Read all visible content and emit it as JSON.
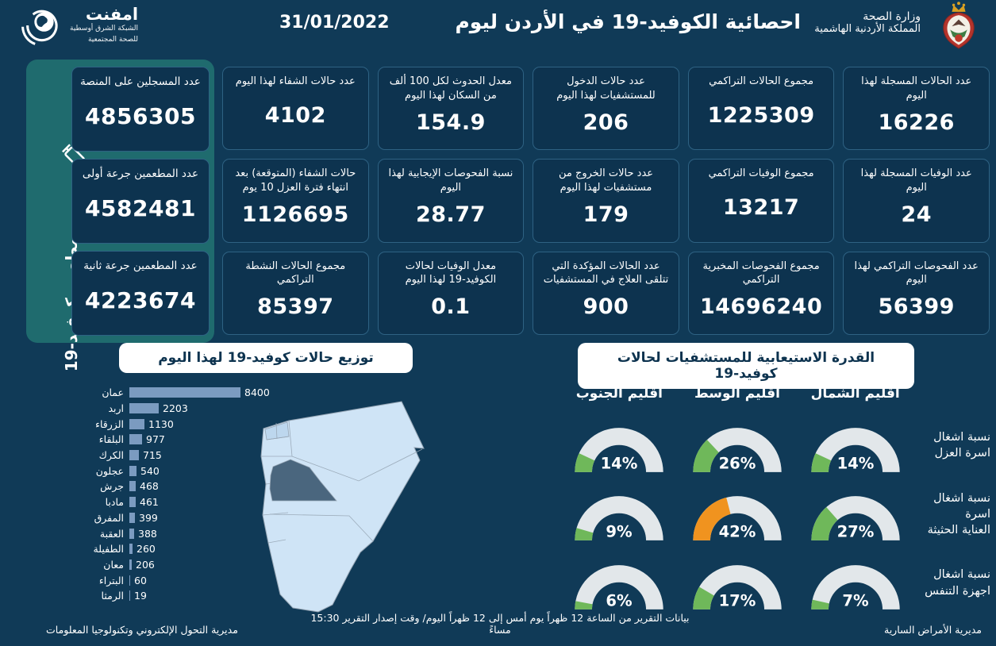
{
  "header": {
    "emphnet": {
      "name": "امفنت",
      "tagline1": "الشبكة الشرق أوسطية",
      "tagline2": "للصحة المجتمعية"
    },
    "title": "احصائية الكوفيد-19 في الأردن ليوم",
    "date": "31/01/2022",
    "ministry": {
      "line1": "وزارة الصحة",
      "line2": "المملكة الأردنية الهاشمية"
    }
  },
  "vaccination": {
    "side_label": "مطعوم كوفيد-19",
    "syringe_icon": "syringe-icon",
    "cards": [
      {
        "label": "عدد المسجلين على المنصة",
        "value": "4856305"
      },
      {
        "label": "عدد المطعمين جرعة أولى",
        "value": "4582481"
      },
      {
        "label": "عدد المطعمين جرعة ثانية",
        "value": "4223674"
      }
    ]
  },
  "stats_cards": [
    {
      "label": "عدد الحالات المسجلة لهذا اليوم",
      "value": "16226"
    },
    {
      "label": "مجموع الحالات التراكمي",
      "value": "1225309"
    },
    {
      "label": "عدد حالات الدخول للمستشفيات لهذا اليوم",
      "value": "206"
    },
    {
      "label": "معدل الحدوث لكل 100 ألف من السكان لهذا اليوم",
      "value": "154.9"
    },
    {
      "label": "عدد حالات الشفاء لهذا اليوم",
      "value": "4102"
    },
    {
      "label": "عدد الوفيات المسجلة لهذا اليوم",
      "value": "24"
    },
    {
      "label": "مجموع الوفيات التراكمي",
      "value": "13217"
    },
    {
      "label": "عدد حالات الخروج من مستشفيات لهذا اليوم",
      "value": "179"
    },
    {
      "label": "نسبة الفحوصات الإيجابية لهذا اليوم",
      "value": "28.77"
    },
    {
      "label": "حالات الشفاء (المتوقعة) بعد انتهاء فترة العزل 10 يوم",
      "value": "1126695"
    },
    {
      "label": "عدد الفحوصات التراكمي لهذا اليوم",
      "value": "56399"
    },
    {
      "label": "مجموع الفحوصات المخبرية التراكمي",
      "value": "14696240"
    },
    {
      "label": "عدد الحالات المؤكدة التي تتلقى العلاج في المستشفيات",
      "value": "900"
    },
    {
      "label": "معدل الوفيات لحالات الكوفيد-19 لهذا اليوم",
      "value": "0.1"
    },
    {
      "label": "مجموع الحالات النشطة التراكمي",
      "value": "85397"
    }
  ],
  "sections": {
    "distribution_title": "توزيع حالات كوفيد-19 لهذا اليوم",
    "capacity_title": "القدرة الاستيعابية للمستشفيات لحالات كوفيد-19"
  },
  "chart_data": [
    {
      "type": "bar",
      "title": "توزيع حالات كوفيد-19 لهذا اليوم",
      "orientation": "horizontal",
      "categories": [
        "عمان",
        "اربد",
        "الزرقاء",
        "البلقاء",
        "الكرك",
        "عجلون",
        "جرش",
        "مادبا",
        "المفرق",
        "العقبة",
        "الطفيلة",
        "معان",
        "البتراء",
        "الرمثا"
      ],
      "values": [
        8400,
        2203,
        1130,
        977,
        715,
        540,
        468,
        461,
        399,
        388,
        260,
        206,
        60,
        19
      ],
      "xlim": [
        0,
        8400
      ],
      "bar_color": "#7b9bc0",
      "value_labels": "shown at bar end"
    },
    {
      "type": "gauge-grid",
      "title": "القدرة الاستيعابية للمستشفيات لحالات كوفيد-19",
      "unit": "%",
      "range": [
        0,
        100
      ],
      "columns": [
        "اقليم الجنوب",
        "اقليم الوسط",
        "اقليم الشمال"
      ],
      "rows": [
        {
          "label_lines": [
            "نسبة اشغال",
            "اسرة العزل"
          ],
          "values": [
            14,
            26,
            14
          ],
          "colors": [
            "green",
            "green",
            "green"
          ]
        },
        {
          "label_lines": [
            "نسبة اشغال اسرة",
            "العناية الحثيثة"
          ],
          "values": [
            9,
            42,
            27
          ],
          "colors": [
            "green",
            "orange",
            "green"
          ]
        },
        {
          "label_lines": [
            "نسبة اشغال",
            "اجهزة التنفس"
          ],
          "values": [
            6,
            17,
            7
          ],
          "colors": [
            "green",
            "green",
            "green"
          ]
        }
      ]
    }
  ],
  "colors": {
    "background": "#103a57",
    "card_bg": "#0d334f",
    "card_border": "#2e6283",
    "sidebar_green": "#1f6b6e",
    "bar": "#7b9bc0",
    "gauge_track": "#e2e7ea",
    "green": "#6fb85a",
    "orange": "#f0931f",
    "map_light": "#cfe4f6",
    "map_tint": "#bdd7ee",
    "map_dark": "#4a667e"
  },
  "footer": {
    "right": "مديرية الأمراض السارية",
    "center": "بيانات التقرير من الساعة 12 ظهراً يوم أمس إلى 12 ظهراً اليوم/ وقت إصدار التقرير 15:30 مساءً",
    "left": "مديرية التحول الإلكتروني وتكنولوجيا المعلومات"
  }
}
